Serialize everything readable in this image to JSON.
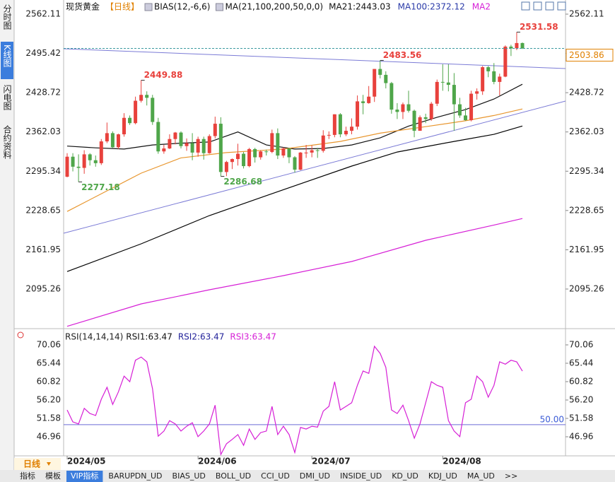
{
  "header": {
    "instrument": "现货黄金",
    "period": "【日线】",
    "bias": "BIAS(12,-6,6)",
    "ma_params": "MA(21,100,200,50,0,0)"
  },
  "sidebar": [
    "分时图",
    "K线图",
    "闪电图",
    "合约资料"
  ],
  "period_selector": "日线",
  "tabs": [
    "指标",
    "模板",
    "VIP指标",
    "BARUPDN_UD",
    "BIAS_UD",
    "BOLL_UD",
    "CCI_UD",
    "DMI_UD",
    "INSIDE_UD",
    "KD_UD",
    "KDJ_UD",
    "MA_UD",
    ">>"
  ],
  "chart_data": [
    {
      "type": "candlestick",
      "up_color": "#e8413c",
      "down_color": "#4fa64a",
      "ylim": [
        2031.6,
        2562.11
      ],
      "yticks": [
        2562.11,
        2495.42,
        2428.72,
        2362.03,
        2295.34,
        2228.65,
        2161.95,
        2095.26
      ],
      "xticks": [
        {
          "value": 0,
          "label": "2024/05"
        },
        {
          "value": 23,
          "label": "2024/06"
        },
        {
          "value": 43,
          "label": "2024/07"
        },
        {
          "value": 66,
          "label": "2024/08"
        }
      ],
      "open": [
        2286,
        2320,
        2303,
        2301,
        2324,
        2314,
        2309,
        2346,
        2360,
        2336,
        2358,
        2386,
        2377,
        2415,
        2425,
        2420,
        2379,
        2329,
        2334,
        2350,
        2361,
        2338,
        2343,
        2327,
        2350,
        2326,
        2355,
        2376,
        2294,
        2311,
        2316,
        2325,
        2304,
        2333,
        2319,
        2329,
        2328,
        2360,
        2322,
        2334,
        2319,
        2298,
        2327,
        2327,
        2331,
        2330,
        2356,
        2357,
        2392,
        2358,
        2364,
        2371,
        2414,
        2411,
        2422,
        2469,
        2459,
        2445,
        2400,
        2396,
        2409,
        2398,
        2364,
        2387,
        2384,
        2410,
        2447,
        2446,
        2442,
        2409,
        2390,
        2382,
        2427,
        2431,
        2472,
        2465,
        2447,
        2456,
        2507,
        2504,
        2513
      ],
      "high": [
        2326,
        2326,
        2324,
        2331,
        2326,
        2322,
        2350,
        2378,
        2363,
        2359,
        2394,
        2390,
        2422,
        2449.88,
        2431,
        2425,
        2386,
        2340,
        2358,
        2362,
        2363,
        2351,
        2360,
        2354,
        2354,
        2358,
        2388,
        2387,
        2313,
        2317,
        2342,
        2328,
        2335,
        2335,
        2331,
        2332,
        2366,
        2368,
        2336,
        2335,
        2321,
        2328,
        2340,
        2339,
        2335,
        2365,
        2363,
        2392,
        2394,
        2371,
        2385,
        2424,
        2425,
        2440,
        2469,
        2483.56,
        2465,
        2447,
        2411,
        2412,
        2432,
        2400,
        2390,
        2393,
        2413,
        2451,
        2477,
        2477,
        2462,
        2420,
        2403,
        2432,
        2436,
        2474,
        2474,
        2479,
        2461,
        2509,
        2510,
        2531.58,
        2514
      ],
      "low": [
        2285,
        2295,
        2277.18,
        2291,
        2305,
        2303,
        2306,
        2343,
        2335,
        2333,
        2354,
        2374,
        2375,
        2412,
        2407,
        2374,
        2325,
        2325,
        2333,
        2341,
        2334,
        2330,
        2314,
        2320,
        2315,
        2325,
        2351,
        2286.68,
        2287,
        2299,
        2305,
        2300,
        2302,
        2310,
        2315,
        2322,
        2326,
        2316,
        2318,
        2309,
        2293,
        2297,
        2318,
        2319,
        2318,
        2327,
        2350,
        2353,
        2353,
        2355,
        2358,
        2366,
        2392,
        2410,
        2413,
        2453,
        2436,
        2393,
        2384,
        2384,
        2395,
        2353,
        2364,
        2377,
        2381,
        2406,
        2432,
        2431,
        2364,
        2386,
        2381,
        2380,
        2417,
        2425,
        2455,
        2443,
        2424,
        2455,
        2491,
        2501,
        2503
      ],
      "close": [
        2320,
        2303,
        2301,
        2324,
        2314,
        2309,
        2346,
        2360,
        2336,
        2358,
        2386,
        2377,
        2415,
        2425,
        2420,
        2379,
        2329,
        2334,
        2350,
        2361,
        2338,
        2343,
        2327,
        2350,
        2326,
        2355,
        2376,
        2294,
        2311,
        2316,
        2325,
        2304,
        2333,
        2319,
        2329,
        2328,
        2360,
        2322,
        2334,
        2319,
        2298,
        2327,
        2327,
        2331,
        2330,
        2356,
        2357,
        2392,
        2358,
        2364,
        2371,
        2414,
        2411,
        2422,
        2469,
        2459,
        2445,
        2400,
        2396,
        2409,
        2398,
        2364,
        2387,
        2384,
        2410,
        2447,
        2446,
        2442,
        2409,
        2390,
        2382,
        2427,
        2431,
        2472,
        2465,
        2447,
        2456,
        2507,
        2504,
        2513,
        2503.86
      ],
      "series": [
        {
          "name": "MA21:2443.03",
          "color": "#111111",
          "x": [
            0,
            5,
            10,
            15,
            20,
            25,
            30,
            35,
            40,
            45,
            50,
            55,
            60,
            65,
            70,
            75,
            80
          ],
          "values": [
            2338,
            2335,
            2333,
            2340,
            2343,
            2345,
            2362,
            2340,
            2333,
            2334,
            2340,
            2352,
            2372,
            2387,
            2400,
            2418,
            2443.03
          ]
        },
        {
          "color": "#e8962e",
          "x": [
            0,
            7,
            13,
            20,
            28,
            38,
            48,
            55,
            63,
            70,
            75,
            80
          ],
          "values": [
            2227,
            2262,
            2292,
            2318,
            2327,
            2333,
            2346,
            2360,
            2371,
            2381,
            2390,
            2401
          ]
        },
        {
          "name": "MA100:2372.12",
          "color": "#000000",
          "x": [
            0,
            13,
            25,
            38,
            50,
            58,
            68,
            75,
            80
          ],
          "values": [
            2125,
            2172,
            2220,
            2264,
            2304,
            2328,
            2346,
            2358,
            2372.12
          ]
        },
        {
          "name": "MA2",
          "color": "#d61fd6",
          "x": [
            0,
            13,
            25,
            38,
            50,
            63,
            75,
            80
          ],
          "values": [
            2032,
            2070,
            2094,
            2118,
            2142,
            2178,
            2204,
            2215
          ]
        }
      ]
    },
    {
      "type": "line",
      "title": "RSI(14,14,14)",
      "ylim": [
        42.16,
        73.61
      ],
      "yticks": [
        70.06,
        65.44,
        60.82,
        {
          "value": 56.2,
          "label": "56.20"
        },
        51.58,
        46.96
      ],
      "reference": {
        "value": 50,
        "label": "50.00"
      },
      "series": [
        {
          "name": "RSI1:63.47",
          "color": "#111111"
        },
        {
          "name": "RSI2:63.47",
          "color": "#22229a"
        },
        {
          "name": "RSI3:63.47",
          "color": "#d61fd6",
          "values": [
            53.7,
            50.7,
            50.2,
            54.1,
            52.8,
            52.3,
            56.4,
            59.4,
            55.1,
            58.2,
            62.2,
            60.8,
            66.2,
            67.0,
            65.8,
            59.0,
            47.1,
            48.4,
            51.0,
            50.2,
            48.4,
            49.6,
            50.5,
            47.0,
            48.4,
            50.2,
            54.9,
            42.5,
            45.2,
            46.3,
            47.5,
            44.8,
            48.9,
            46.3,
            48.0,
            48.4,
            54.6,
            47.5,
            49.6,
            47.5,
            43.0,
            49.3,
            48.9,
            49.6,
            49.4,
            53.4,
            54.6,
            60.8,
            53.7,
            54.6,
            55.5,
            59.9,
            63.5,
            62.9,
            69.7,
            67.9,
            64.4,
            53.7,
            52.8,
            54.9,
            51.0,
            46.6,
            50.2,
            55.5,
            60.8,
            59.9,
            59.4,
            51.0,
            48.4,
            47.0,
            55.5,
            56.4,
            62.2,
            60.8,
            56.9,
            59.9,
            65.8,
            65.2,
            66.2,
            65.8,
            63.47
          ]
        }
      ]
    }
  ]
}
